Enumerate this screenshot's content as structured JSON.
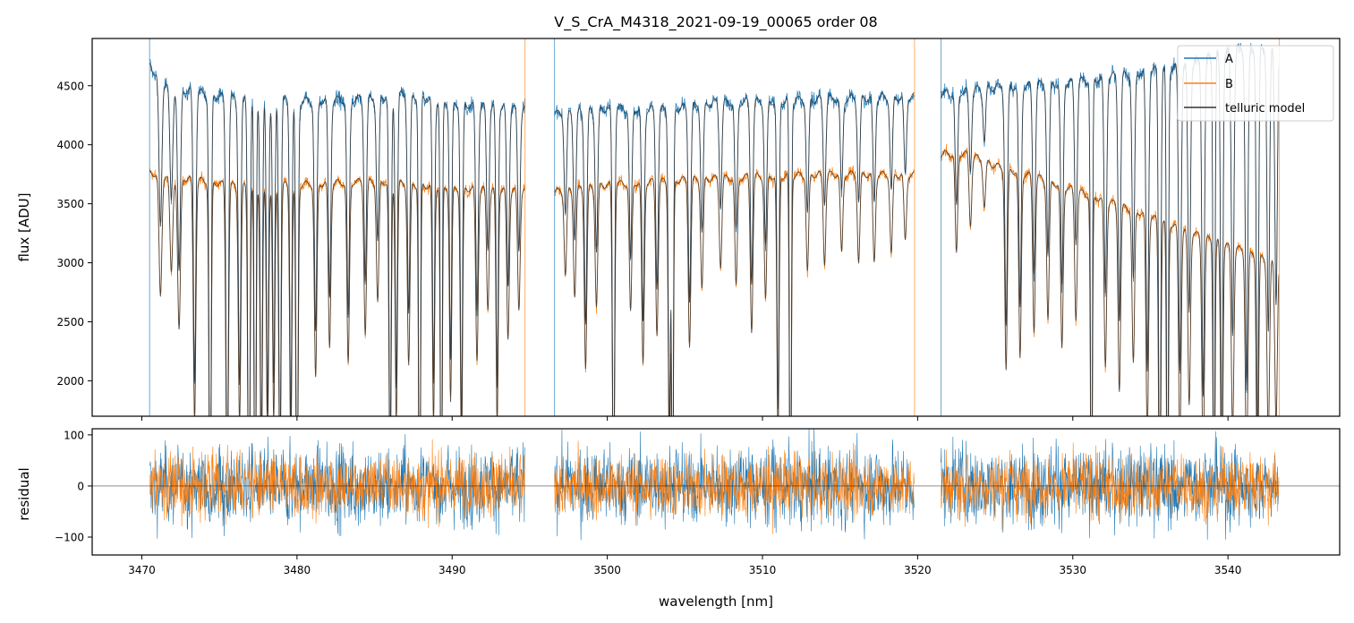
{
  "chart_data": {
    "type": "line",
    "title": "V_S_CrA_M4318_2021-09-19_00065  order 08",
    "xlabel": "wavelength [nm]",
    "xlim": [
      3466.8,
      3547.2
    ],
    "xticks": [
      3470,
      3480,
      3490,
      3500,
      3510,
      3520,
      3530,
      3540
    ],
    "xtick_labels": [
      "3470",
      "3480",
      "3490",
      "3500",
      "3510",
      "3520",
      "3530",
      "3540"
    ],
    "colors": {
      "A": "#1f77b4",
      "B": "#ff7f0e",
      "model": "#333333"
    },
    "top_panel": {
      "ylabel": "flux [ADU]",
      "ylim": [
        1700,
        4900
      ],
      "yticks": [
        2000,
        2500,
        3000,
        3500,
        4000,
        4500
      ],
      "ytick_labels": [
        "2000",
        "2500",
        "3000",
        "3500",
        "4000",
        "4500"
      ]
    },
    "bottom_panel": {
      "ylabel": "residual",
      "ylim": [
        -135,
        112
      ],
      "yticks": [
        -100,
        0,
        100
      ],
      "ytick_labels": [
        "−100",
        "0",
        "100"
      ]
    },
    "legend": {
      "position": "top-right",
      "entries": [
        {
          "label": "A",
          "series": "A"
        },
        {
          "label": "B",
          "series": "B"
        },
        {
          "label": "telluric model",
          "series": "model"
        }
      ]
    },
    "segments": [
      [
        3470.5,
        3494.7
      ],
      [
        3496.6,
        3519.8
      ],
      [
        3521.5,
        3543.3
      ]
    ],
    "series": [
      {
        "name": "A",
        "continuum": [
          [
            3470.5,
            4700
          ],
          [
            3471.5,
            4560
          ],
          [
            3473,
            4490
          ],
          [
            3476,
            4420
          ],
          [
            3480,
            4400
          ],
          [
            3484,
            4420
          ],
          [
            3487,
            4460
          ],
          [
            3490,
            4380
          ],
          [
            3494.7,
            4340
          ],
          [
            3496.6,
            4290
          ],
          [
            3500,
            4340
          ],
          [
            3504,
            4330
          ],
          [
            3507,
            4390
          ],
          [
            3510,
            4400
          ],
          [
            3514,
            4420
          ],
          [
            3519.8,
            4440
          ],
          [
            3521.5,
            4460
          ],
          [
            3525,
            4520
          ],
          [
            3530,
            4560
          ],
          [
            3534,
            4640
          ],
          [
            3537,
            4700
          ],
          [
            3540,
            4820
          ],
          [
            3543.3,
            4880
          ]
        ]
      },
      {
        "name": "B",
        "continuum": [
          [
            3470.5,
            3790
          ],
          [
            3473,
            3740
          ],
          [
            3476,
            3680
          ],
          [
            3480,
            3690
          ],
          [
            3485,
            3720
          ],
          [
            3490,
            3660
          ],
          [
            3494.7,
            3640
          ],
          [
            3496.6,
            3630
          ],
          [
            3500,
            3690
          ],
          [
            3505,
            3730
          ],
          [
            3510,
            3760
          ],
          [
            3515,
            3780
          ],
          [
            3519.8,
            3770
          ],
          [
            3521.5,
            3950
          ],
          [
            3523,
            3960
          ],
          [
            3525,
            3850
          ],
          [
            3528,
            3740
          ],
          [
            3531,
            3600
          ],
          [
            3534,
            3470
          ],
          [
            3537,
            3310
          ],
          [
            3540,
            3170
          ],
          [
            3543.3,
            3030
          ]
        ]
      }
    ],
    "absorption_lines": [
      {
        "x": 3471.2,
        "depth": 0.28,
        "width": 0.09
      },
      {
        "x": 3471.9,
        "depth": 0.22,
        "width": 0.09
      },
      {
        "x": 3472.4,
        "depth": 0.35,
        "width": 0.09
      },
      {
        "x": 3473.4,
        "depth": 0.55,
        "width": 0.08
      },
      {
        "x": 3474.4,
        "depth": 0.85,
        "width": 0.07
      },
      {
        "x": 3475.5,
        "depth": 0.75,
        "width": 0.08
      },
      {
        "x": 3476.3,
        "depth": 0.55,
        "width": 0.08
      },
      {
        "x": 3476.9,
        "depth": 0.9,
        "width": 0.07
      },
      {
        "x": 3477.3,
        "depth": 0.95,
        "width": 0.06
      },
      {
        "x": 3477.7,
        "depth": 0.7,
        "width": 0.07
      },
      {
        "x": 3478.1,
        "depth": 0.6,
        "width": 0.07
      },
      {
        "x": 3478.5,
        "depth": 0.55,
        "width": 0.07
      },
      {
        "x": 3478.9,
        "depth": 0.72,
        "width": 0.07
      },
      {
        "x": 3479.6,
        "depth": 0.62,
        "width": 0.07
      },
      {
        "x": 3480.0,
        "depth": 0.85,
        "width": 0.07
      },
      {
        "x": 3481.2,
        "depth": 0.45,
        "width": 0.08
      },
      {
        "x": 3482.1,
        "depth": 0.38,
        "width": 0.08
      },
      {
        "x": 3483.3,
        "depth": 0.42,
        "width": 0.08
      },
      {
        "x": 3484.4,
        "depth": 0.35,
        "width": 0.08
      },
      {
        "x": 3485.2,
        "depth": 0.28,
        "width": 0.08
      },
      {
        "x": 3486.0,
        "depth": 0.72,
        "width": 0.07
      },
      {
        "x": 3486.4,
        "depth": 0.55,
        "width": 0.07
      },
      {
        "x": 3487.2,
        "depth": 0.42,
        "width": 0.08
      },
      {
        "x": 3487.9,
        "depth": 0.95,
        "width": 0.06
      },
      {
        "x": 3488.8,
        "depth": 0.55,
        "width": 0.07
      },
      {
        "x": 3489.3,
        "depth": 0.9,
        "width": 0.06
      },
      {
        "x": 3489.9,
        "depth": 0.5,
        "width": 0.07
      },
      {
        "x": 3490.6,
        "depth": 0.62,
        "width": 0.07
      },
      {
        "x": 3491.6,
        "depth": 0.4,
        "width": 0.08
      },
      {
        "x": 3492.3,
        "depth": 0.28,
        "width": 0.08
      },
      {
        "x": 3492.9,
        "depth": 0.55,
        "width": 0.07
      },
      {
        "x": 3493.6,
        "depth": 0.35,
        "width": 0.08
      },
      {
        "x": 3494.3,
        "depth": 0.28,
        "width": 0.08
      },
      {
        "x": 3497.3,
        "depth": 0.2,
        "width": 0.08
      },
      {
        "x": 3497.9,
        "depth": 0.25,
        "width": 0.08
      },
      {
        "x": 3498.6,
        "depth": 0.42,
        "width": 0.08
      },
      {
        "x": 3499.3,
        "depth": 0.28,
        "width": 0.08
      },
      {
        "x": 3500.4,
        "depth": 0.8,
        "width": 0.07
      },
      {
        "x": 3501.5,
        "depth": 0.3,
        "width": 0.08
      },
      {
        "x": 3502.3,
        "depth": 0.42,
        "width": 0.08
      },
      {
        "x": 3503.2,
        "depth": 0.35,
        "width": 0.08
      },
      {
        "x": 3504.0,
        "depth": 0.65,
        "width": 0.07
      },
      {
        "x": 3504.2,
        "depth": 0.85,
        "width": 0.06
      },
      {
        "x": 3505.3,
        "depth": 0.38,
        "width": 0.08
      },
      {
        "x": 3506.1,
        "depth": 0.25,
        "width": 0.08
      },
      {
        "x": 3507.3,
        "depth": 0.2,
        "width": 0.08
      },
      {
        "x": 3508.3,
        "depth": 0.25,
        "width": 0.08
      },
      {
        "x": 3509.3,
        "depth": 0.35,
        "width": 0.08
      },
      {
        "x": 3510.2,
        "depth": 0.28,
        "width": 0.08
      },
      {
        "x": 3511.0,
        "depth": 0.6,
        "width": 0.07
      },
      {
        "x": 3511.8,
        "depth": 0.9,
        "width": 0.06
      },
      {
        "x": 3512.9,
        "depth": 0.22,
        "width": 0.08
      },
      {
        "x": 3514.0,
        "depth": 0.2,
        "width": 0.08
      },
      {
        "x": 3515.1,
        "depth": 0.18,
        "width": 0.08
      },
      {
        "x": 3516.2,
        "depth": 0.2,
        "width": 0.08
      },
      {
        "x": 3517.2,
        "depth": 0.2,
        "width": 0.08
      },
      {
        "x": 3518.3,
        "depth": 0.18,
        "width": 0.08
      },
      {
        "x": 3519.2,
        "depth": 0.15,
        "width": 0.08
      },
      {
        "x": 3522.5,
        "depth": 0.22,
        "width": 0.08
      },
      {
        "x": 3523.4,
        "depth": 0.15,
        "width": 0.08
      },
      {
        "x": 3524.3,
        "depth": 0.1,
        "width": 0.08
      },
      {
        "x": 3525.7,
        "depth": 0.45,
        "width": 0.08
      },
      {
        "x": 3526.6,
        "depth": 0.42,
        "width": 0.08
      },
      {
        "x": 3527.5,
        "depth": 0.35,
        "width": 0.08
      },
      {
        "x": 3528.4,
        "depth": 0.32,
        "width": 0.08
      },
      {
        "x": 3529.3,
        "depth": 0.38,
        "width": 0.08
      },
      {
        "x": 3530.2,
        "depth": 0.3,
        "width": 0.08
      },
      {
        "x": 3531.2,
        "depth": 0.9,
        "width": 0.06
      },
      {
        "x": 3532.1,
        "depth": 0.4,
        "width": 0.08
      },
      {
        "x": 3533.0,
        "depth": 0.45,
        "width": 0.08
      },
      {
        "x": 3533.9,
        "depth": 0.38,
        "width": 0.08
      },
      {
        "x": 3534.8,
        "depth": 0.55,
        "width": 0.08
      },
      {
        "x": 3535.6,
        "depth": 0.85,
        "width": 0.07
      },
      {
        "x": 3536.1,
        "depth": 0.9,
        "width": 0.06
      },
      {
        "x": 3536.9,
        "depth": 0.55,
        "width": 0.08
      },
      {
        "x": 3537.5,
        "depth": 0.45,
        "width": 0.08
      },
      {
        "x": 3538.4,
        "depth": 0.6,
        "width": 0.08
      },
      {
        "x": 3539.1,
        "depth": 0.88,
        "width": 0.06
      },
      {
        "x": 3539.6,
        "depth": 0.75,
        "width": 0.07
      },
      {
        "x": 3540.3,
        "depth": 0.5,
        "width": 0.08
      },
      {
        "x": 3541.2,
        "depth": 0.6,
        "width": 0.08
      },
      {
        "x": 3541.9,
        "depth": 0.72,
        "width": 0.07
      },
      {
        "x": 3542.6,
        "depth": 0.5,
        "width": 0.08
      },
      {
        "x": 3543.1,
        "depth": 0.45,
        "width": 0.08
      }
    ],
    "residual_noise_amplitude": {
      "A": 45,
      "B": 36
    }
  }
}
